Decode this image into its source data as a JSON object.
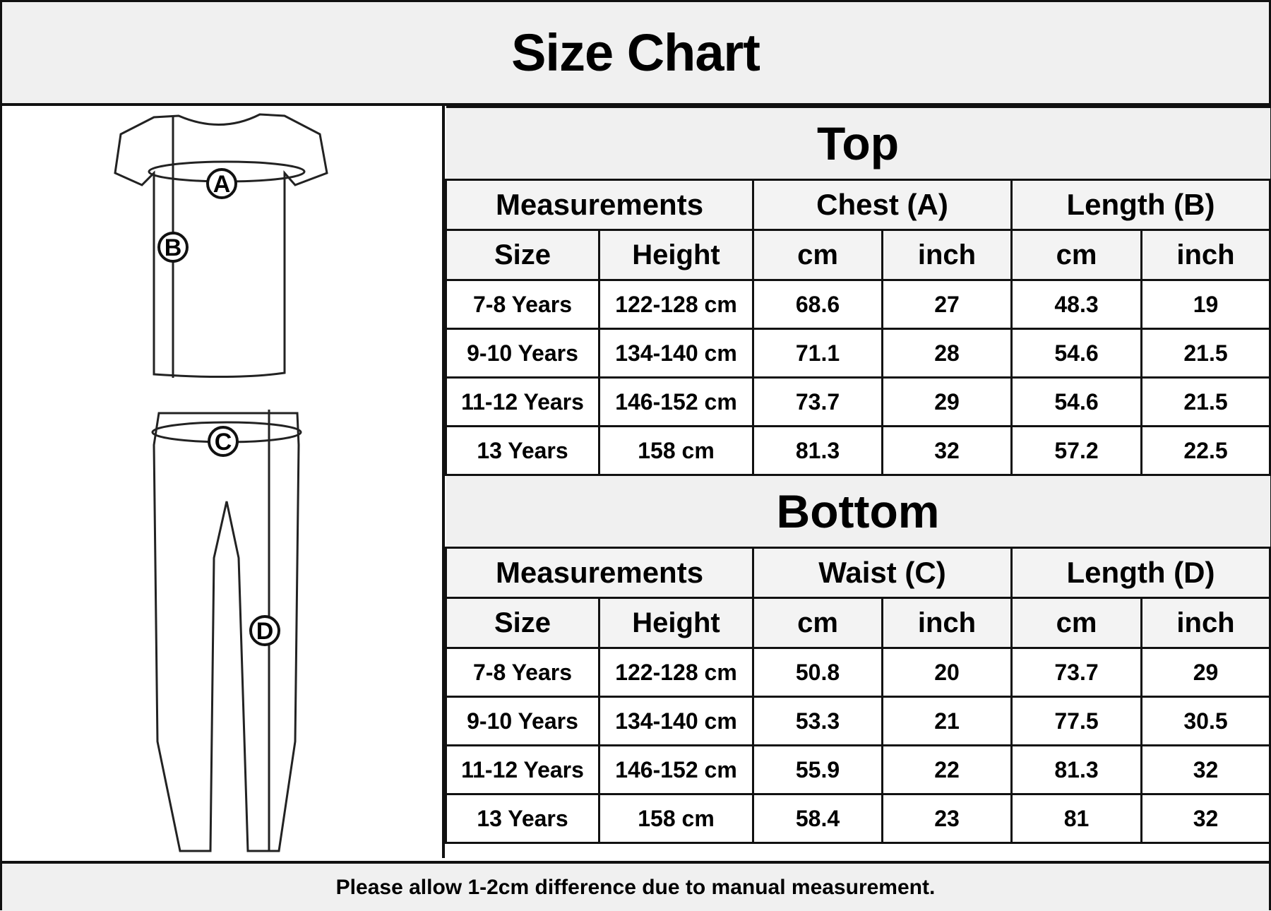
{
  "title": "Size Chart",
  "illustration": {
    "labels": [
      "A",
      "B",
      "C",
      "D"
    ]
  },
  "top": {
    "title": "Top",
    "groups": [
      "Measurements",
      "Chest (A)",
      "Length (B)"
    ],
    "subheaders": [
      "Size",
      "Height",
      "cm",
      "inch",
      "cm",
      "inch"
    ],
    "rows": [
      [
        "7-8 Years",
        "122-128 cm",
        "68.6",
        "27",
        "48.3",
        "19"
      ],
      [
        "9-10 Years",
        "134-140 cm",
        "71.1",
        "28",
        "54.6",
        "21.5"
      ],
      [
        "11-12 Years",
        "146-152 cm",
        "73.7",
        "29",
        "54.6",
        "21.5"
      ],
      [
        "13 Years",
        "158 cm",
        "81.3",
        "32",
        "57.2",
        "22.5"
      ]
    ]
  },
  "bottom": {
    "title": "Bottom",
    "groups": [
      "Measurements",
      "Waist (C)",
      "Length (D)"
    ],
    "subheaders": [
      "Size",
      "Height",
      "cm",
      "inch",
      "cm",
      "inch"
    ],
    "rows": [
      [
        "7-8 Years",
        "122-128 cm",
        "50.8",
        "20",
        "73.7",
        "29"
      ],
      [
        "9-10 Years",
        "134-140 cm",
        "53.3",
        "21",
        "77.5",
        "30.5"
      ],
      [
        "11-12 Years",
        "146-152 cm",
        "55.9",
        "22",
        "81.3",
        "32"
      ],
      [
        "13 Years",
        "158 cm",
        "58.4",
        "23",
        "81",
        "32"
      ]
    ]
  },
  "footer": "Please allow 1-2cm difference due to manual measurement."
}
